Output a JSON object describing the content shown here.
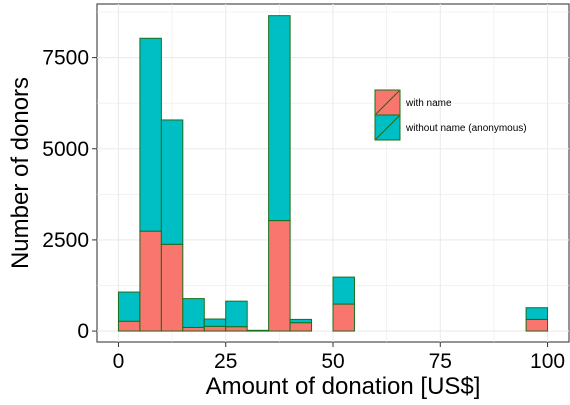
{
  "chart_data": {
    "type": "bar",
    "subtype": "stacked-histogram",
    "title": "",
    "xlabel": "Amount of donation [US$]",
    "ylabel": "Number of donors",
    "xlim": [
      -5,
      105
    ],
    "ylim": [
      -300,
      8970
    ],
    "x_ticks": [
      0,
      25,
      50,
      75,
      100
    ],
    "x_tick_labels": [
      "0",
      "25",
      "50",
      "75",
      "100"
    ],
    "y_ticks": [
      0,
      2500,
      5000,
      7500
    ],
    "y_tick_labels": [
      "0",
      "2500",
      "5000",
      "7500"
    ],
    "bin_edges": [
      0,
      5,
      10,
      15,
      20,
      25,
      30,
      35,
      40,
      45,
      50,
      55,
      60,
      65,
      70,
      75,
      80,
      85,
      90,
      95,
      100
    ],
    "series": [
      {
        "name": "with name",
        "color": "#F8766D",
        "values": [
          270,
          2740,
          2380,
          100,
          130,
          120,
          20,
          3030,
          230,
          0,
          740,
          0,
          0,
          0,
          0,
          0,
          0,
          0,
          0,
          320
        ]
      },
      {
        "name": "without name (anonymous)",
        "color": "#00BFC4",
        "values": [
          800,
          5290,
          3410,
          790,
          200,
          700,
          0,
          5620,
          90,
          0,
          740,
          0,
          0,
          0,
          0,
          0,
          0,
          0,
          0,
          320
        ]
      }
    ],
    "bar_outline_color": "#1a6e1a",
    "grid": true,
    "grid_color": "#ebebeb",
    "legend_position": "top-right"
  }
}
